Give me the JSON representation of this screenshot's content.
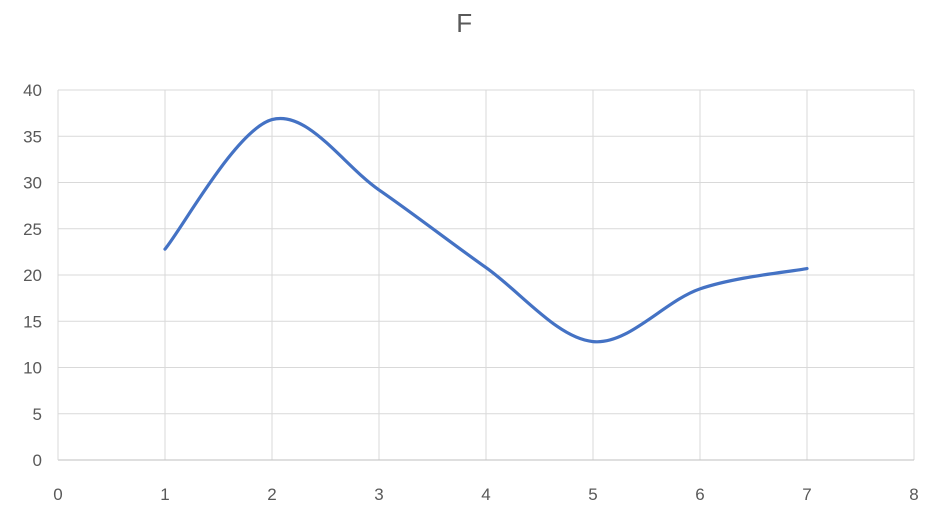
{
  "chart_data": {
    "type": "line",
    "title": "F",
    "xlabel": "",
    "ylabel": "",
    "xlim": [
      0,
      8
    ],
    "ylim": [
      0,
      40
    ],
    "xticks": [
      0,
      1,
      2,
      3,
      4,
      5,
      6,
      7,
      8
    ],
    "yticks": [
      0,
      5,
      10,
      15,
      20,
      25,
      30,
      35,
      40
    ],
    "grid": true,
    "smooth": true,
    "line_color": "#4472C4",
    "series": [
      {
        "x": [
          1,
          2,
          3,
          4,
          5,
          6,
          7
        ],
        "y": [
          22.8,
          36.8,
          29.2,
          20.8,
          12.8,
          18.5,
          20.7
        ]
      }
    ]
  }
}
